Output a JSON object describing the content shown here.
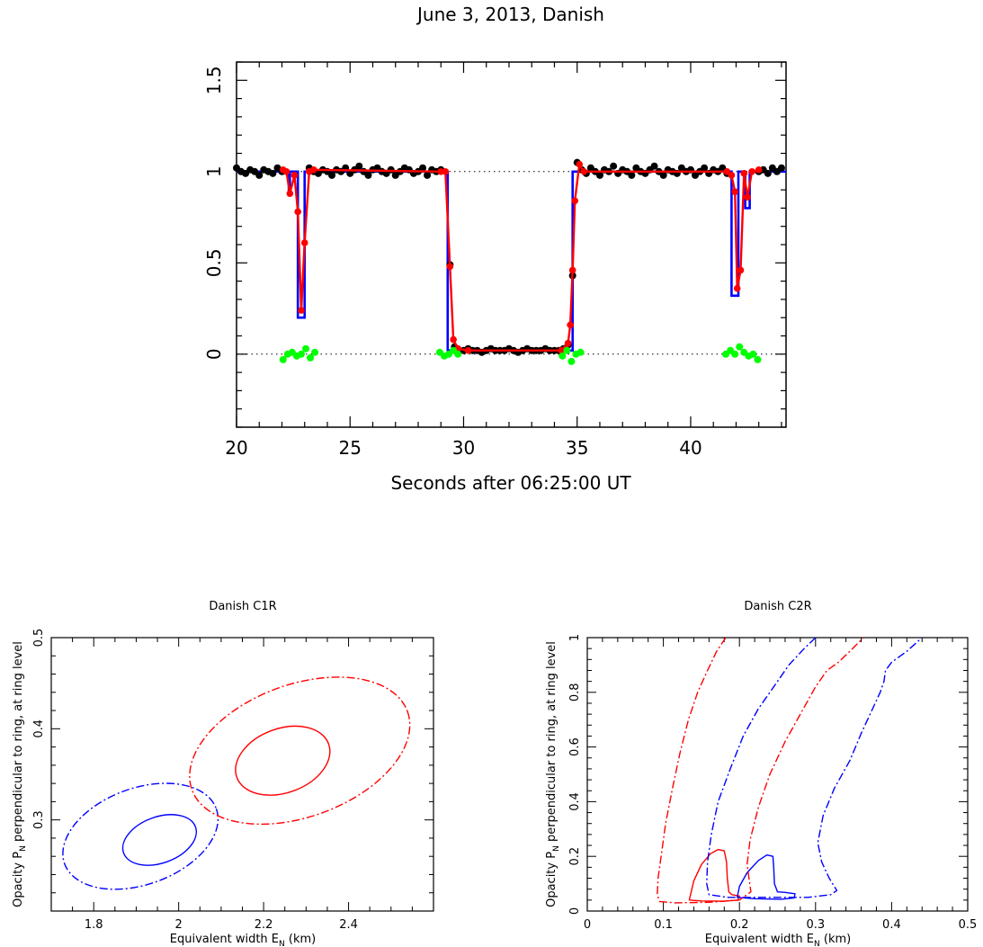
{
  "chart_data": [
    {
      "type": "line",
      "title": "June 3, 2013, Danish",
      "xlabel": "Seconds after 06:25:00 UT",
      "ylabel": "",
      "xlim": [
        20,
        44.2
      ],
      "ylim": [
        -0.4,
        1.6
      ],
      "xticks": [
        20,
        25,
        30,
        35,
        40
      ],
      "yticks": [
        0,
        0.5,
        1,
        1.5
      ],
      "ytick_labels": [
        "0",
        "0.5",
        "1",
        "1.5"
      ],
      "reference_lines": [
        0,
        1
      ],
      "series": [
        {
          "color": "#0000ff",
          "style": "line",
          "x": [
            20,
            22.3,
            22.3,
            22.35,
            22.35,
            22.7,
            22.7,
            23.0,
            23.0,
            29.3,
            29.3,
            29.55,
            29.55,
            34.6,
            34.6,
            34.8,
            34.8,
            41.8,
            41.8,
            42.1,
            42.1,
            42.4,
            42.4,
            42.6,
            42.6,
            44.2
          ],
          "y": [
            1,
            1,
            0.87,
            0.87,
            1,
            1,
            0.2,
            0.2,
            1,
            1,
            0.02,
            0.02,
            0.02,
            0.02,
            0.02,
            0.02,
            1,
            1,
            0.32,
            0.32,
            1,
            1,
            0.8,
            0.8,
            1,
            1
          ]
        },
        {
          "color": "#ff0000",
          "style": "line-markers",
          "x": [
            22.05,
            22.2,
            22.35,
            22.55,
            22.7,
            22.85,
            23.0,
            23.2,
            23.4,
            29.0,
            29.2,
            29.4,
            29.55,
            29.75,
            30.2,
            34.3,
            34.5,
            34.6,
            34.7,
            34.8,
            34.9,
            35.1,
            35.3,
            41.6,
            41.8,
            41.95,
            42.05,
            42.2,
            42.35,
            42.5,
            42.7,
            43.0
          ],
          "y": [
            1.01,
            1.0,
            0.88,
            0.98,
            0.78,
            0.24,
            0.61,
            1.0,
            1.01,
            1.0,
            1.0,
            0.48,
            0.08,
            0.03,
            0.02,
            0.02,
            0.03,
            0.06,
            0.16,
            0.46,
            0.84,
            1.04,
            1.0,
            1.0,
            0.98,
            0.89,
            0.36,
            0.46,
            0.99,
            0.86,
            1.0,
            1.01
          ]
        },
        {
          "color": "#000000",
          "style": "markers",
          "x": [
            20.0,
            20.2,
            20.4,
            20.6,
            20.8,
            21.0,
            21.2,
            21.4,
            21.6,
            21.8,
            22.0,
            23.2,
            23.4,
            23.6,
            23.8,
            24.0,
            24.2,
            24.4,
            24.6,
            24.8,
            25.0,
            25.2,
            25.4,
            25.6,
            25.8,
            26.0,
            26.2,
            26.4,
            26.6,
            26.8,
            27.0,
            27.2,
            27.4,
            27.6,
            27.8,
            28.0,
            28.2,
            28.4,
            28.6,
            28.8,
            29.0,
            29.4,
            29.6,
            29.8,
            30.0,
            30.2,
            30.4,
            30.6,
            30.8,
            31.0,
            31.2,
            31.4,
            31.6,
            31.8,
            32.0,
            32.2,
            32.4,
            32.6,
            32.8,
            33.0,
            33.2,
            33.4,
            33.6,
            33.8,
            34.0,
            34.2,
            34.4,
            34.6,
            34.8,
            35.0,
            35.2,
            35.4,
            35.6,
            35.8,
            36.0,
            36.2,
            36.4,
            36.6,
            36.8,
            37.0,
            37.2,
            37.4,
            37.6,
            37.8,
            38.0,
            38.2,
            38.4,
            38.6,
            38.8,
            39.0,
            39.2,
            39.4,
            39.6,
            39.8,
            40.0,
            40.2,
            40.4,
            40.6,
            40.8,
            41.0,
            41.2,
            41.4,
            41.6,
            43.0,
            43.2,
            43.4,
            43.6,
            43.8,
            44.0
          ],
          "y": [
            1.02,
            1.0,
            0.99,
            1.01,
            1.0,
            0.98,
            1.01,
            1.0,
            0.99,
            1.02,
            1.0,
            1.02,
            1.0,
            0.99,
            1.01,
            1.0,
            0.98,
            1.01,
            1.0,
            1.02,
            0.99,
            1.01,
            1.03,
            1.0,
            0.98,
            1.01,
            1.02,
            1.0,
            0.99,
            1.01,
            0.98,
            1.0,
            1.02,
            1.01,
            0.99,
            1.0,
            1.02,
            0.98,
            1.01,
            1.0,
            1.01,
            0.49,
            0.04,
            0.02,
            0.02,
            0.03,
            0.02,
            0.02,
            0.01,
            0.02,
            0.03,
            0.02,
            0.02,
            0.02,
            0.03,
            0.02,
            0.01,
            0.02,
            0.03,
            0.02,
            0.02,
            0.02,
            0.03,
            0.02,
            0.02,
            0.02,
            0.03,
            0.05,
            0.43,
            1.05,
            1.01,
            0.99,
            1.02,
            1.0,
            0.98,
            1.01,
            1.0,
            1.03,
            0.99,
            1.01,
            1.0,
            0.98,
            1.02,
            1.0,
            0.99,
            1.01,
            1.03,
            1.0,
            0.98,
            1.01,
            1.0,
            0.99,
            1.02,
            1.0,
            1.01,
            0.98,
            1.0,
            1.02,
            0.99,
            1.01,
            1.0,
            1.02,
            0.99,
            1.0,
            1.01,
            0.99,
            1.02,
            1.0,
            1.02
          ]
        },
        {
          "color": "#00ff00",
          "style": "markers",
          "x": [
            22.05,
            22.25,
            22.45,
            22.65,
            22.85,
            23.05,
            23.25,
            23.45,
            28.95,
            29.15,
            29.35,
            29.55,
            29.75,
            34.35,
            34.55,
            34.75,
            34.95,
            35.15,
            41.55,
            41.75,
            41.95,
            42.15,
            42.35,
            42.55,
            42.75,
            42.95
          ],
          "y": [
            -0.03,
            0.0,
            0.01,
            -0.01,
            0.0,
            0.03,
            -0.02,
            0.01,
            0.01,
            -0.01,
            0.0,
            0.02,
            0.0,
            -0.01,
            0.02,
            -0.04,
            0.0,
            0.01,
            0.0,
            0.02,
            0.0,
            0.04,
            0.01,
            -0.01,
            0.0,
            -0.03
          ]
        }
      ]
    },
    {
      "type": "line",
      "title": "Danish C1R",
      "xlabel": "Equivalent width E",
      "xlabel_sub": "N",
      "xlabel_unit": " (km)",
      "ylabel": "Opacity P",
      "ylabel_sub": "N",
      "ylabel_rest": " perpendicular to ring, at ring level",
      "xlim": [
        1.7,
        2.6
      ],
      "ylim": [
        0.2,
        0.5
      ],
      "xticks": [
        1.8,
        2,
        2.2,
        2.4
      ],
      "xtick_labels": [
        "1.8",
        "2",
        "2.2",
        "2.4"
      ],
      "yticks": [
        0.3,
        0.4,
        0.5
      ],
      "ytick_labels": [
        "0.3",
        "0.4",
        "0.5"
      ],
      "contours": [
        {
          "color": "#0000ff",
          "dash": "solid",
          "cx": 1.955,
          "cy": 0.278,
          "a": 0.09,
          "b": 0.0115,
          "angle": 8
        },
        {
          "color": "#0000ff",
          "dash": "dashdot",
          "cx": 1.91,
          "cy": 0.282,
          "a": 0.19,
          "b": 0.024,
          "angle": 8
        },
        {
          "color": "#ff0000",
          "dash": "solid",
          "cx": 2.245,
          "cy": 0.365,
          "a": 0.115,
          "b": 0.016,
          "angle": 8
        },
        {
          "color": "#ff0000",
          "dash": "dashdot",
          "cx": 2.285,
          "cy": 0.376,
          "a": 0.27,
          "b": 0.033,
          "angle": 8
        }
      ]
    },
    {
      "type": "line",
      "title": "Danish C2R",
      "xlabel": "Equivalent width E",
      "xlabel_sub": "N",
      "xlabel_unit": " (km)",
      "ylabel": "Opacity P",
      "ylabel_sub": "N",
      "ylabel_rest": " perpendicular to ring, at ring level",
      "xlim": [
        0,
        0.5
      ],
      "ylim": [
        0,
        1
      ],
      "xticks": [
        0,
        0.1,
        0.2,
        0.3,
        0.4,
        0.5
      ],
      "xtick_labels": [
        "0",
        "0.1",
        "0.2",
        "0.3",
        "0.4",
        "0.5"
      ],
      "yticks": [
        0,
        0.2,
        0.4,
        0.6,
        0.8,
        1
      ],
      "ytick_labels": [
        "0",
        "0.2",
        "0.4",
        "0.6",
        "0.8",
        "1"
      ],
      "curves": [
        {
          "color": "#ff0000",
          "dash": "solid",
          "closed": true,
          "x": [
            0.134,
            0.14,
            0.15,
            0.162,
            0.172,
            0.18,
            0.183,
            0.184,
            0.186,
            0.19,
            0.2,
            0.198,
            0.18,
            0.15,
            0.134
          ],
          "y": [
            0.04,
            0.11,
            0.17,
            0.21,
            0.225,
            0.22,
            0.18,
            0.12,
            0.07,
            0.06,
            0.055,
            0.04,
            0.036,
            0.037,
            0.04
          ]
        },
        {
          "color": "#0000ff",
          "dash": "solid",
          "closed": true,
          "x": [
            0.197,
            0.2,
            0.21,
            0.225,
            0.236,
            0.244,
            0.245,
            0.246,
            0.25,
            0.26,
            0.273,
            0.272,
            0.255,
            0.22,
            0.197
          ],
          "y": [
            0.05,
            0.09,
            0.14,
            0.185,
            0.205,
            0.2,
            0.16,
            0.1,
            0.07,
            0.068,
            0.063,
            0.048,
            0.043,
            0.045,
            0.05
          ]
        },
        {
          "color": "#ff0000",
          "dash": "dashdot",
          "closed": false,
          "x": [
            0.182,
            0.17,
            0.158,
            0.145,
            0.133,
            0.122,
            0.112,
            0.103,
            0.097,
            0.093,
            0.092,
            0.095,
            0.115,
            0.16,
            0.2,
            0.215,
            0.213,
            0.21,
            0.214,
            0.225,
            0.24,
            0.26,
            0.28,
            0.3,
            0.315,
            0.33,
            0.345,
            0.363
          ],
          "y": [
            1.0,
            0.95,
            0.88,
            0.8,
            0.7,
            0.58,
            0.45,
            0.32,
            0.2,
            0.12,
            0.06,
            0.035,
            0.03,
            0.032,
            0.04,
            0.07,
            0.11,
            0.17,
            0.26,
            0.38,
            0.5,
            0.62,
            0.72,
            0.82,
            0.88,
            0.91,
            0.95,
            1.0
          ]
        },
        {
          "color": "#0000ff",
          "dash": "dashdot",
          "closed": false,
          "x": [
            0.3,
            0.285,
            0.265,
            0.245,
            0.225,
            0.205,
            0.188,
            0.172,
            0.163,
            0.158,
            0.157,
            0.16,
            0.185,
            0.24,
            0.29,
            0.32,
            0.328,
            0.318,
            0.308,
            0.303,
            0.31,
            0.325,
            0.345,
            0.36,
            0.375,
            0.385,
            0.39,
            0.392,
            0.4,
            0.42,
            0.44
          ],
          "y": [
            1.0,
            0.96,
            0.9,
            0.82,
            0.74,
            0.64,
            0.52,
            0.4,
            0.28,
            0.18,
            0.1,
            0.06,
            0.05,
            0.05,
            0.05,
            0.06,
            0.075,
            0.12,
            0.18,
            0.25,
            0.35,
            0.45,
            0.55,
            0.65,
            0.74,
            0.8,
            0.84,
            0.88,
            0.91,
            0.95,
            1.0
          ]
        }
      ]
    }
  ]
}
